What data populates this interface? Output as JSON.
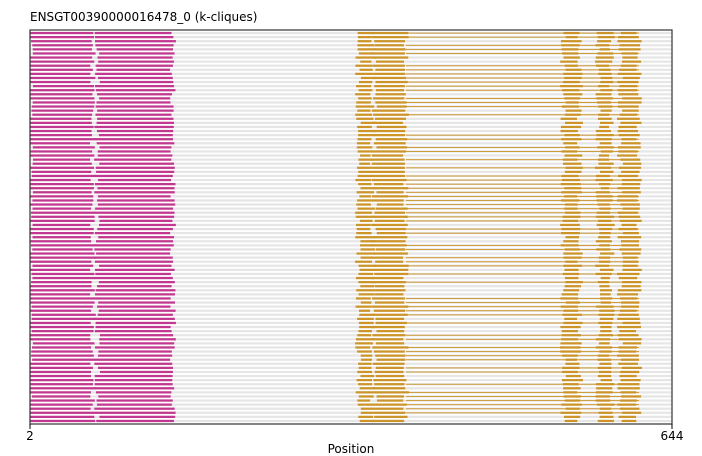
{
  "chart_data": {
    "type": "alignment-track",
    "title": "ENSGT00390000016478_0 (k-cliques)",
    "xlabel": "Position",
    "x_ticks": [
      "2",
      "644"
    ],
    "xlim": [
      2,
      644
    ],
    "row_count": 96,
    "colors": {
      "background_gap": "#e6e6e6",
      "clique_1": "#c2378f",
      "clique_2": "#cc9429",
      "frame": "#333333"
    },
    "clique_1_blocks": [
      [
        2,
        65
      ],
      [
        69,
        145
      ]
    ],
    "clique_2_blocks": [
      [
        330,
        345
      ],
      [
        346,
        378
      ],
      [
        535,
        552
      ],
      [
        570,
        584
      ],
      [
        592,
        611
      ]
    ],
    "gap_span": [
      2,
      644
    ]
  }
}
